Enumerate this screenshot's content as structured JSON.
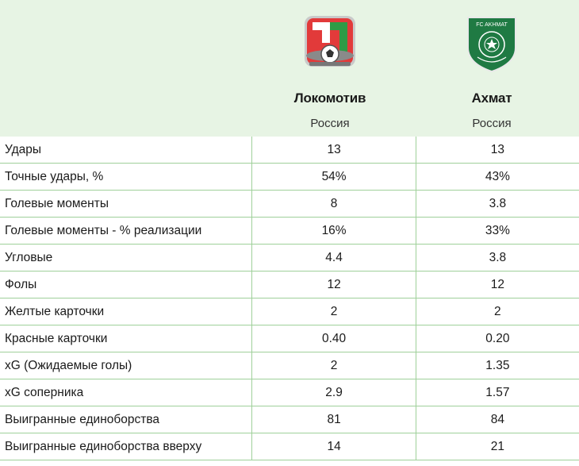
{
  "teams": [
    {
      "name": "Локомотив",
      "country": "Россия",
      "logo": "lokomotiv-logo",
      "color": "#d92b2b"
    },
    {
      "name": "Ахмат",
      "country": "Россия",
      "logo": "akhmat-logo",
      "color": "#1f7a43",
      "logo_text": "FC AKHMAT"
    }
  ],
  "colors": {
    "header_bg": "#e7f4e4",
    "divider": "#9fd09a"
  },
  "rows": [
    {
      "label": "Удары",
      "v1": "13",
      "v2": "13"
    },
    {
      "label": "Точные удары, %",
      "v1": "54%",
      "v2": "43%"
    },
    {
      "label": "Голевые моменты",
      "v1": "8",
      "v2": "3.8"
    },
    {
      "label": "Голевые моменты - % реализации",
      "v1": "16%",
      "v2": "33%"
    },
    {
      "label": "Угловые",
      "v1": "4.4",
      "v2": "3.8"
    },
    {
      "label": "Фолы",
      "v1": "12",
      "v2": "12"
    },
    {
      "label": "Желтые карточки",
      "v1": "2",
      "v2": "2"
    },
    {
      "label": "Красные карточки",
      "v1": "0.40",
      "v2": "0.20"
    },
    {
      "label": "xG (Ожидаемые голы)",
      "v1": "2",
      "v2": "1.35"
    },
    {
      "label": "xG соперника",
      "v1": "2.9",
      "v2": "1.57"
    },
    {
      "label": "Выигранные единоборства",
      "v1": "81",
      "v2": "84"
    },
    {
      "label": "Выигранные единоборства вверху",
      "v1": "14",
      "v2": "21"
    }
  ]
}
